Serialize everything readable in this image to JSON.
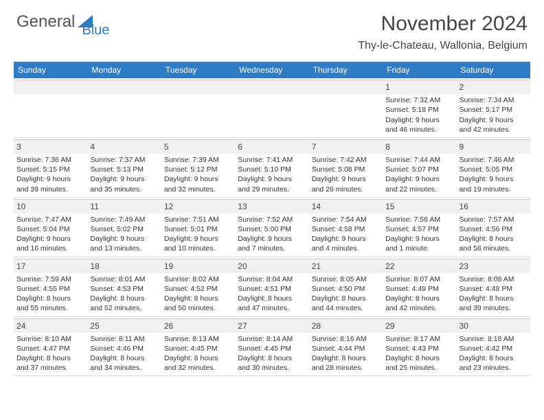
{
  "brand": {
    "part1": "General",
    "part2": "Blue"
  },
  "title": "November 2024",
  "location": "Thy-le-Chateau, Wallonia, Belgium",
  "colors": {
    "accent": "#2f7bc4",
    "header_bg": "#2f7bc4",
    "datebar_bg": "#eef0f2",
    "text": "#333333"
  },
  "day_names": [
    "Sunday",
    "Monday",
    "Tuesday",
    "Wednesday",
    "Thursday",
    "Friday",
    "Saturday"
  ],
  "weeks": [
    [
      null,
      null,
      null,
      null,
      null,
      {
        "d": "1",
        "sr": "7:32 AM",
        "ss": "5:18 PM",
        "dl": "9 hours and 46 minutes."
      },
      {
        "d": "2",
        "sr": "7:34 AM",
        "ss": "5:17 PM",
        "dl": "9 hours and 42 minutes."
      }
    ],
    [
      {
        "d": "3",
        "sr": "7:36 AM",
        "ss": "5:15 PM",
        "dl": "9 hours and 39 minutes."
      },
      {
        "d": "4",
        "sr": "7:37 AM",
        "ss": "5:13 PM",
        "dl": "9 hours and 35 minutes."
      },
      {
        "d": "5",
        "sr": "7:39 AM",
        "ss": "5:12 PM",
        "dl": "9 hours and 32 minutes."
      },
      {
        "d": "6",
        "sr": "7:41 AM",
        "ss": "5:10 PM",
        "dl": "9 hours and 29 minutes."
      },
      {
        "d": "7",
        "sr": "7:42 AM",
        "ss": "5:08 PM",
        "dl": "9 hours and 26 minutes."
      },
      {
        "d": "8",
        "sr": "7:44 AM",
        "ss": "5:07 PM",
        "dl": "9 hours and 22 minutes."
      },
      {
        "d": "9",
        "sr": "7:46 AM",
        "ss": "5:05 PM",
        "dl": "9 hours and 19 minutes."
      }
    ],
    [
      {
        "d": "10",
        "sr": "7:47 AM",
        "ss": "5:04 PM",
        "dl": "9 hours and 16 minutes."
      },
      {
        "d": "11",
        "sr": "7:49 AM",
        "ss": "5:02 PM",
        "dl": "9 hours and 13 minutes."
      },
      {
        "d": "12",
        "sr": "7:51 AM",
        "ss": "5:01 PM",
        "dl": "9 hours and 10 minutes."
      },
      {
        "d": "13",
        "sr": "7:52 AM",
        "ss": "5:00 PM",
        "dl": "9 hours and 7 minutes."
      },
      {
        "d": "14",
        "sr": "7:54 AM",
        "ss": "4:58 PM",
        "dl": "9 hours and 4 minutes."
      },
      {
        "d": "15",
        "sr": "7:56 AM",
        "ss": "4:57 PM",
        "dl": "9 hours and 1 minute."
      },
      {
        "d": "16",
        "sr": "7:57 AM",
        "ss": "4:56 PM",
        "dl": "8 hours and 58 minutes."
      }
    ],
    [
      {
        "d": "17",
        "sr": "7:59 AM",
        "ss": "4:55 PM",
        "dl": "8 hours and 55 minutes."
      },
      {
        "d": "18",
        "sr": "8:01 AM",
        "ss": "4:53 PM",
        "dl": "8 hours and 52 minutes."
      },
      {
        "d": "19",
        "sr": "8:02 AM",
        "ss": "4:52 PM",
        "dl": "8 hours and 50 minutes."
      },
      {
        "d": "20",
        "sr": "8:04 AM",
        "ss": "4:51 PM",
        "dl": "8 hours and 47 minutes."
      },
      {
        "d": "21",
        "sr": "8:05 AM",
        "ss": "4:50 PM",
        "dl": "8 hours and 44 minutes."
      },
      {
        "d": "22",
        "sr": "8:07 AM",
        "ss": "4:49 PM",
        "dl": "8 hours and 42 minutes."
      },
      {
        "d": "23",
        "sr": "8:08 AM",
        "ss": "4:48 PM",
        "dl": "8 hours and 39 minutes."
      }
    ],
    [
      {
        "d": "24",
        "sr": "8:10 AM",
        "ss": "4:47 PM",
        "dl": "8 hours and 37 minutes."
      },
      {
        "d": "25",
        "sr": "8:11 AM",
        "ss": "4:46 PM",
        "dl": "8 hours and 34 minutes."
      },
      {
        "d": "26",
        "sr": "8:13 AM",
        "ss": "4:45 PM",
        "dl": "8 hours and 32 minutes."
      },
      {
        "d": "27",
        "sr": "8:14 AM",
        "ss": "4:45 PM",
        "dl": "8 hours and 30 minutes."
      },
      {
        "d": "28",
        "sr": "8:16 AM",
        "ss": "4:44 PM",
        "dl": "8 hours and 28 minutes."
      },
      {
        "d": "29",
        "sr": "8:17 AM",
        "ss": "4:43 PM",
        "dl": "8 hours and 25 minutes."
      },
      {
        "d": "30",
        "sr": "8:18 AM",
        "ss": "4:42 PM",
        "dl": "8 hours and 23 minutes."
      }
    ]
  ],
  "labels": {
    "sunrise": "Sunrise:",
    "sunset": "Sunset:",
    "daylight": "Daylight:"
  }
}
